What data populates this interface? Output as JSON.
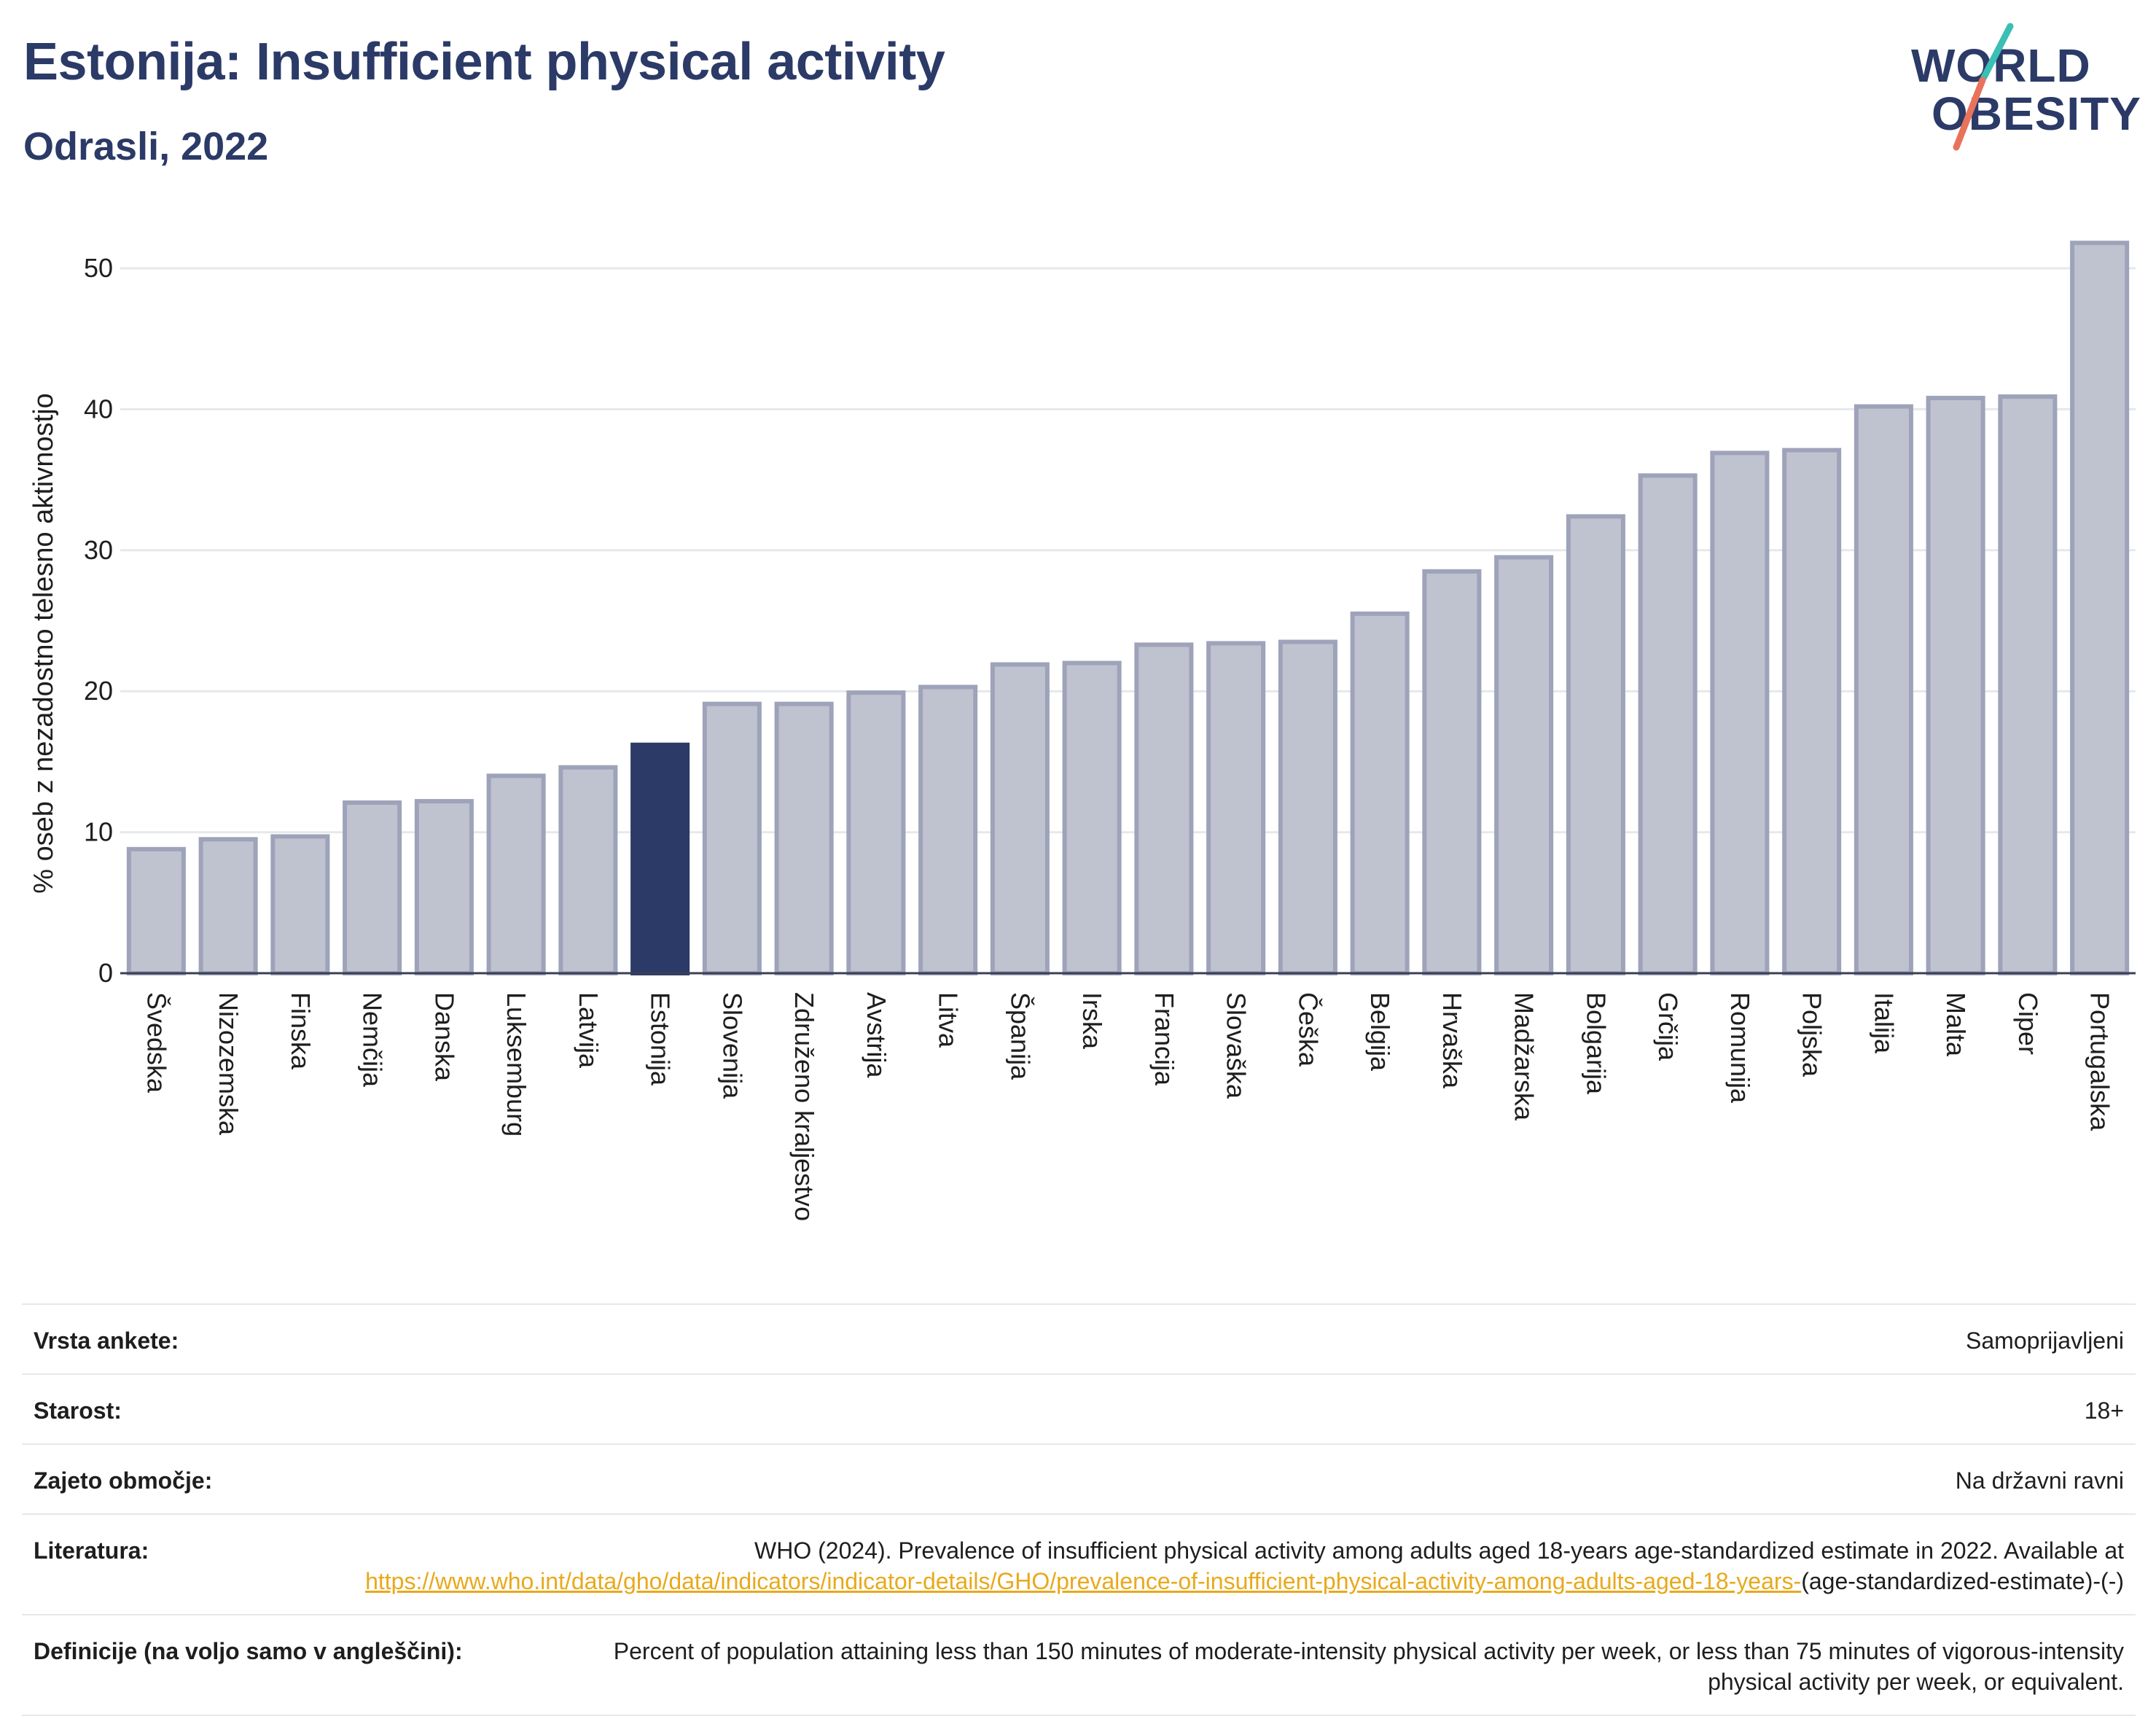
{
  "header": {
    "title": "Estonija: Insufficient physical activity",
    "subtitle": "Odrasli, 2022"
  },
  "logo": {
    "line1": "WORLD",
    "line2": "OBESITY",
    "accent_colors": [
      "#3bbfb4",
      "#e8735a"
    ]
  },
  "colors": {
    "highlight": "#2b3a67",
    "bar": "#bfc2cf",
    "bar_stroke": "#9ea3ba",
    "link": "#e8a91b",
    "title": "#2b3a67"
  },
  "chart_data": {
    "type": "bar",
    "ylabel": "% oseb z nezadostno telesno aktivnostjo",
    "ylim": [
      0,
      53
    ],
    "yticks": [
      0,
      10,
      20,
      30,
      40,
      50
    ],
    "grid": true,
    "highlight": "Estonija",
    "categories": [
      "Švedska",
      "Nizozemska",
      "Finska",
      "Nemčija",
      "Danska",
      "Luksemburg",
      "Latvija",
      "Estonija",
      "Slovenija",
      "Združeno kraljestvo",
      "Avstrija",
      "Litva",
      "Španija",
      "Irska",
      "Francija",
      "Slovaška",
      "Češka",
      "Belgija",
      "Hrvaška",
      "Madžarska",
      "Bolgarija",
      "Grčija",
      "Romunija",
      "Poljska",
      "Italija",
      "Malta",
      "Ciper",
      "Portugalska"
    ],
    "values": [
      8.8,
      9.5,
      9.7,
      12.1,
      12.2,
      14.0,
      14.6,
      16.2,
      19.1,
      19.1,
      19.9,
      20.3,
      21.9,
      22.0,
      23.3,
      23.4,
      23.5,
      25.5,
      28.5,
      29.5,
      32.4,
      35.3,
      36.9,
      37.1,
      40.2,
      40.8,
      40.9,
      51.8
    ]
  },
  "info": {
    "rows": [
      {
        "label": "Vrsta ankete:",
        "value": "Samoprijavljeni"
      },
      {
        "label": "Starost:",
        "value": "18+"
      },
      {
        "label": "Zajeto območje:",
        "value": "Na državni ravni"
      }
    ],
    "reference": {
      "label": "Literatura:",
      "text_before": "WHO (2024). Prevalence of insufficient physical activity among adults aged 18-years age-standardized estimate in 2022. Available at ",
      "link": "https://www.who.int/data/gho/data/indicators/indicator-details/GHO/prevalence-of-insufficient-physical-activity-among-adults-aged-18-years-",
      "text_after": "(age-standardized-estimate)-(-)"
    },
    "definition": {
      "label": "Definicije (na voljo samo v angleščini):",
      "value": "Percent of population attaining less than 150 minutes of moderate-intensity physical activity per week, or less than 75 minutes of vigorous-intensity physical activity per week, or equivalent."
    }
  }
}
